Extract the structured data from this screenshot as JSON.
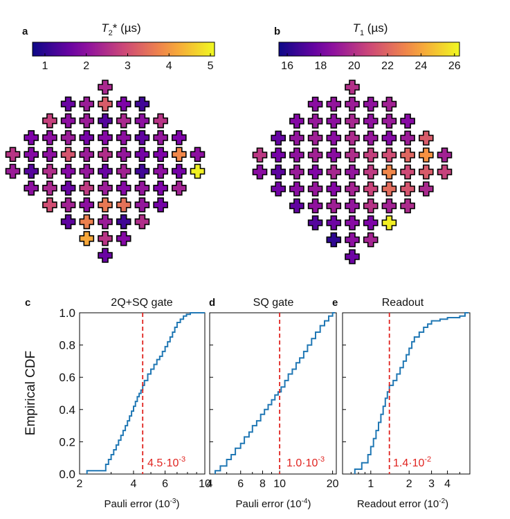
{
  "panels": {
    "a": {
      "letter": "a",
      "title_main": "T",
      "title_sub": "2",
      "title_rest": "* (µs)"
    },
    "b": {
      "letter": "b",
      "title_main": "T",
      "title_sub": "1",
      "title_rest": " (µs)"
    },
    "c": {
      "letter": "c",
      "title": "2Q+SQ gate",
      "xlabel": "Pauli error (10",
      "xexp": "-3",
      "xlabel_end": ")",
      "ylabel": "Empirical CDF",
      "median_label": "4.5·10",
      "median_exp": "-3"
    },
    "d": {
      "letter": "d",
      "title": "SQ gate",
      "xlabel": "Pauli error (10",
      "xexp": "-4",
      "xlabel_end": ")",
      "median_label": "1.0·10",
      "median_exp": "-3"
    },
    "e": {
      "letter": "e",
      "title": "Readout",
      "xlabel": "Readout error (10",
      "xexp": "-2",
      "xlabel_end": ")",
      "median_label": "1.4·10",
      "median_exp": "-2"
    }
  },
  "chart_data": [
    {
      "type": "heatmap",
      "panel": "a",
      "colorbar": {
        "min": 0.7,
        "max": 5.1,
        "ticks": [
          1,
          2,
          3,
          4,
          5
        ],
        "colormap": "plasma"
      },
      "rows": [
        [
          2.4
        ],
        [
          1.6,
          2.2,
          3.2,
          1.8,
          1.2
        ],
        [
          2.8,
          2.0,
          2.2,
          1.4,
          2.4,
          2.0,
          2.6
        ],
        [
          1.8,
          2.0,
          2.2,
          1.7,
          1.9,
          2.0,
          1.5,
          2.1,
          1.8
        ],
        [
          2.6,
          1.9,
          2.0,
          3.1,
          2.2,
          2.5,
          2.1,
          1.7,
          1.8,
          3.8,
          2.0
        ],
        [
          2.2,
          1.4,
          2.5,
          1.9,
          2.1,
          1.6,
          2.3,
          1.2,
          2.0,
          1.7,
          5.0
        ],
        [
          2.0,
          2.4,
          1.6,
          2.7,
          2.2,
          1.9,
          2.1,
          1.8,
          2.3
        ],
        [
          3.0,
          2.3,
          2.0,
          3.6,
          3.5,
          2.1,
          1.7
        ],
        [
          1.5,
          3.7,
          2.2,
          1.2,
          2.5
        ],
        [
          4.2,
          2.6,
          1.9
        ],
        [
          1.6
        ]
      ]
    },
    {
      "type": "heatmap",
      "panel": "b",
      "colorbar": {
        "min": 15.5,
        "max": 26.3,
        "ticks": [
          16,
          18,
          20,
          22,
          24,
          26
        ],
        "colormap": "plasma"
      },
      "rows": [
        [
          20.0
        ],
        [
          18.6,
          18.9,
          19.2,
          18.8,
          19.4
        ],
        [
          18.4,
          19.0,
          18.7,
          19.6,
          18.8,
          19.1,
          18.5
        ],
        [
          17.6,
          18.9,
          19.3,
          18.6,
          19.8,
          19.0,
          18.4,
          19.2,
          21.6
        ],
        [
          20.3,
          18.0,
          18.8,
          19.4,
          18.6,
          19.9,
          20.6,
          21.1,
          22.0,
          23.5,
          19.4
        ],
        [
          18.6,
          17.4,
          19.1,
          18.3,
          19.6,
          18.9,
          20.4,
          23.1,
          21.0,
          21.6,
          20.7
        ],
        [
          17.9,
          18.6,
          19.0,
          18.4,
          19.5,
          20.8,
          22.2,
          21.4,
          19.7
        ],
        [
          17.5,
          18.8,
          19.3,
          18.9,
          20.1,
          19.4,
          19.8
        ],
        [
          17.2,
          17.8,
          18.5,
          18.2,
          26.0
        ],
        [
          16.3,
          18.7,
          19.5
        ],
        [
          17.8
        ]
      ]
    },
    {
      "type": "line",
      "panel": "c",
      "xscale": "log",
      "xlim": [
        2,
        10
      ],
      "ylim": [
        0,
        1
      ],
      "xticks": [
        2,
        4,
        6,
        10
      ],
      "xtick_labels": [
        "2",
        "4",
        "6",
        "10"
      ],
      "minor_xticks": [
        3,
        5,
        7,
        8,
        9
      ],
      "yticks": [
        0,
        0.2,
        0.4,
        0.6,
        0.8,
        1.0
      ],
      "ytick_labels": [
        "0.0",
        "0.2",
        "0.4",
        "0.6",
        "0.8",
        "1.0"
      ],
      "x": [
        2.2,
        2.8,
        2.9,
        3.0,
        3.1,
        3.2,
        3.3,
        3.4,
        3.5,
        3.6,
        3.7,
        3.8,
        3.9,
        4.0,
        4.1,
        4.2,
        4.3,
        4.4,
        4.5,
        4.6,
        4.8,
        5.0,
        5.2,
        5.4,
        5.6,
        5.8,
        6.0,
        6.2,
        6.4,
        6.6,
        6.8,
        7.0,
        7.3,
        7.6,
        7.9,
        8.3,
        10.0
      ],
      "y": [
        0.02,
        0.06,
        0.09,
        0.12,
        0.15,
        0.18,
        0.21,
        0.24,
        0.27,
        0.3,
        0.33,
        0.36,
        0.39,
        0.42,
        0.45,
        0.48,
        0.5,
        0.52,
        0.55,
        0.58,
        0.62,
        0.65,
        0.68,
        0.71,
        0.73,
        0.76,
        0.79,
        0.82,
        0.85,
        0.88,
        0.91,
        0.94,
        0.96,
        0.98,
        0.99,
        1.0,
        1.0
      ],
      "median": 4.5
    },
    {
      "type": "line",
      "panel": "d",
      "xscale": "log",
      "xlim": [
        4,
        21
      ],
      "ylim": [
        0,
        1
      ],
      "xticks": [
        4,
        6,
        8,
        10,
        20
      ],
      "xtick_labels": [
        "4",
        "6",
        "8",
        "10",
        "20"
      ],
      "minor_xticks": [
        5,
        7,
        9
      ],
      "x": [
        4.3,
        4.6,
        5.0,
        5.3,
        5.6,
        6.0,
        6.3,
        6.7,
        7.0,
        7.4,
        7.8,
        8.2,
        8.6,
        9.0,
        9.4,
        9.8,
        10.2,
        10.7,
        11.2,
        11.8,
        12.4,
        13.0,
        13.7,
        14.4,
        15.2,
        16.0,
        17.0,
        18.0,
        19.0,
        20.0
      ],
      "y": [
        0.02,
        0.05,
        0.09,
        0.12,
        0.16,
        0.19,
        0.23,
        0.26,
        0.3,
        0.33,
        0.37,
        0.4,
        0.43,
        0.46,
        0.49,
        0.51,
        0.54,
        0.58,
        0.62,
        0.65,
        0.69,
        0.72,
        0.76,
        0.8,
        0.84,
        0.88,
        0.92,
        0.95,
        0.98,
        1.0
      ],
      "median": 10.0
    },
    {
      "type": "line",
      "panel": "e",
      "xscale": "log",
      "xlim": [
        0.6,
        6
      ],
      "ylim": [
        0,
        1
      ],
      "xticks": [
        1,
        2,
        3,
        4
      ],
      "xtick_labels": [
        "1",
        "2",
        "3",
        "4"
      ],
      "minor_xticks": [
        0.7,
        0.8,
        0.9,
        5
      ],
      "x": [
        0.75,
        0.85,
        0.95,
        1.0,
        1.05,
        1.1,
        1.15,
        1.2,
        1.25,
        1.3,
        1.35,
        1.4,
        1.5,
        1.6,
        1.7,
        1.8,
        1.9,
        2.0,
        2.1,
        2.2,
        2.4,
        2.6,
        2.8,
        3.0,
        3.5,
        4.0,
        5.0,
        5.5
      ],
      "y": [
        0.03,
        0.07,
        0.12,
        0.17,
        0.22,
        0.27,
        0.32,
        0.37,
        0.42,
        0.47,
        0.51,
        0.55,
        0.58,
        0.62,
        0.66,
        0.7,
        0.74,
        0.78,
        0.82,
        0.85,
        0.88,
        0.91,
        0.93,
        0.95,
        0.96,
        0.97,
        0.98,
        1.0
      ],
      "median": 1.4
    }
  ]
}
